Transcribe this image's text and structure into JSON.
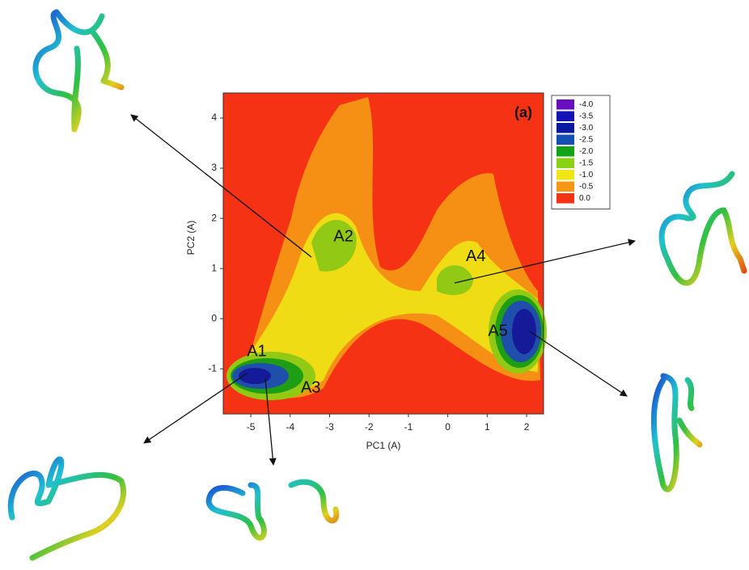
{
  "chart_data": {
    "type": "contour",
    "panel_label": "(a)",
    "xlabel": "PC1 (A)",
    "ylabel": "PC2 (A)",
    "xlim": [
      -5.7,
      2.43
    ],
    "ylim": [
      -1.9,
      4.5
    ],
    "xticks": [
      -5,
      -4,
      -3,
      -2,
      -1,
      0,
      1,
      2
    ],
    "yticks": [
      -1,
      0,
      1,
      2,
      3,
      4
    ],
    "legend": "top-right",
    "levels": [
      {
        "value": -4,
        "label": "-4.0",
        "color": "#6a0fc0"
      },
      {
        "value": -3.5,
        "label": "-3.5",
        "color": "#1414b4"
      },
      {
        "value": -3,
        "label": "-3.0",
        "color": "#0a1aa0"
      },
      {
        "value": -2.5,
        "label": "-2.5",
        "color": "#1450b4"
      },
      {
        "value": -2,
        "label": "-2.0",
        "color": "#12a414"
      },
      {
        "value": -1.5,
        "label": "-1.5",
        "color": "#8cd214"
      },
      {
        "value": -1,
        "label": "-1.0",
        "color": "#f0e614"
      },
      {
        "value": -0.5,
        "label": "-0.5",
        "color": "#f59614"
      },
      {
        "value": 0,
        "label": "0.0",
        "color": "#f53214"
      }
    ],
    "annotations": [
      {
        "text": "A1",
        "x": -5.1,
        "y": -0.66
      },
      {
        "text": "A2",
        "x": -2.9,
        "y": 1.63
      },
      {
        "text": "A3",
        "x": -3.73,
        "y": -1.39
      },
      {
        "text": "A4",
        "x": 0.46,
        "y": 1.23
      },
      {
        "text": "A5",
        "x": 1.02,
        "y": -0.26
      }
    ]
  }
}
